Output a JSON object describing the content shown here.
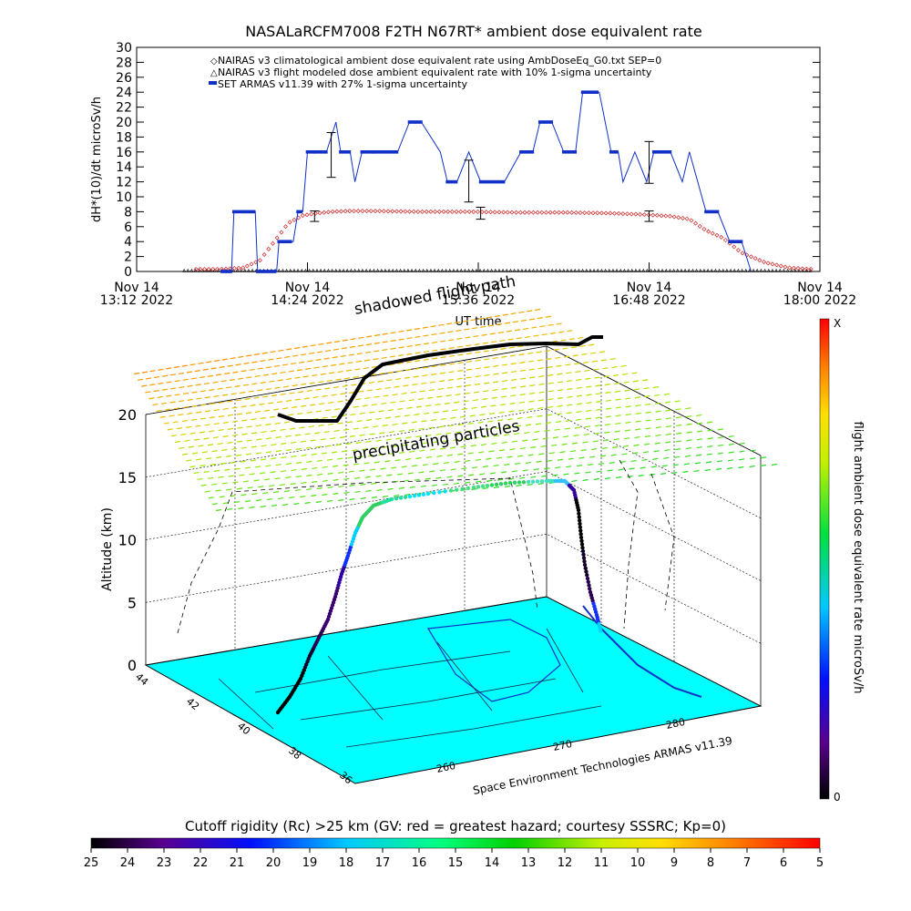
{
  "chart_data": [
    {
      "type": "line",
      "title": "NASALaRCFM7008  F2TH N67RT* ambient dose equivalent rate",
      "xlabel": "UT time",
      "ylabel": "dH*(10)/dt microSv/h",
      "ylim": [
        0,
        30
      ],
      "yticks": [
        "0",
        "2",
        "4",
        "6",
        "8",
        "10",
        "12",
        "14",
        "16",
        "18",
        "20",
        "22",
        "24",
        "26",
        "28",
        "30"
      ],
      "xlim_minutes": [
        0,
        288
      ],
      "xticks": [
        {
          "minutes": 0,
          "day": "Nov 14",
          "time": "13:12 2022"
        },
        {
          "minutes": 72,
          "day": "Nov 14",
          "time": "14:24 2022"
        },
        {
          "minutes": 144,
          "day": "Nov 14",
          "time": "15:36 2022"
        },
        {
          "minutes": 216,
          "day": "Nov 14",
          "time": "16:48 2022"
        },
        {
          "minutes": 288,
          "day": "Nov 14",
          "time": "18:00 2022"
        }
      ],
      "legend_position": "top-left",
      "series": [
        {
          "name": "NAIRAS v3 climatological ambient dose equivalent rate using AmbDoseEq_G0.txt SEP=0",
          "marker": "open-diamond",
          "color": "#d22020",
          "x": [
            25,
            35,
            45,
            52,
            58,
            64,
            70,
            76,
            82,
            90,
            100,
            120,
            140,
            160,
            180,
            200,
            215,
            225,
            233,
            240,
            247,
            255,
            265,
            275,
            285
          ],
          "y": [
            0.3,
            0.3,
            0.5,
            1.5,
            4.0,
            6.5,
            7.5,
            7.8,
            8.0,
            8.1,
            8.1,
            8.0,
            8.0,
            7.9,
            7.9,
            7.8,
            7.6,
            7.4,
            7.0,
            5.5,
            4.5,
            2.5,
            1.2,
            0.5,
            0.3
          ]
        },
        {
          "name": "NAIRAS v3 flight modeled dose ambient equivalent rate with 10% 1-sigma uncertainty",
          "marker": "triangle",
          "color": "#000000",
          "x": [
            75,
            145,
            216
          ],
          "y": [
            7.4,
            7.8,
            7.4
          ],
          "yerr": [
            0.7,
            0.8,
            0.7
          ]
        },
        {
          "name": "SET ARMAS v11.39 with 27% 1-sigma uncertainty",
          "marker": "filled-square",
          "color": "#1030c8",
          "x": [
            36,
            40,
            41,
            50,
            51,
            59,
            60,
            66,
            68,
            70,
            72,
            75,
            80,
            84,
            86,
            90,
            92,
            95,
            100,
            110,
            115,
            120,
            128,
            131,
            135,
            140,
            145,
            155,
            162,
            167,
            170,
            175,
            180,
            185,
            188,
            195,
            200,
            203,
            205,
            210,
            215,
            218,
            220,
            225,
            230,
            233,
            240,
            245,
            250,
            255,
            259
          ],
          "y": [
            0,
            0,
            8,
            8,
            0,
            0,
            4,
            4,
            8,
            8,
            16,
            16,
            16,
            20,
            16,
            16,
            12,
            16,
            16,
            16,
            20,
            20,
            16,
            12,
            12,
            16,
            12,
            12,
            16,
            16,
            20,
            20,
            16,
            16,
            24,
            24,
            16,
            16,
            12,
            16,
            12,
            16,
            16,
            16,
            12,
            16,
            8,
            8,
            4,
            4,
            0
          ],
          "yerr_values": [
            {
              "x": 82,
              "y": 15.6,
              "err": 3.0
            },
            {
              "x": 140,
              "y": 12.1,
              "err": 2.8
            },
            {
              "x": 216,
              "y": 14.6,
              "err": 2.8
            }
          ]
        }
      ],
      "grid": false
    },
    {
      "type": "scatter",
      "title": "",
      "zlabel": "Altitude (km)",
      "zlim": [
        0,
        20
      ],
      "zticks": [
        "0",
        "5",
        "10",
        "15",
        "20"
      ],
      "lat_ticks": [
        "44",
        "42",
        "40",
        "38",
        "36"
      ],
      "lon_ticks": [
        "260",
        "270",
        "280"
      ],
      "annotations": [
        "shadowed flight path",
        "precipitating particles",
        "Space Environment Technologies ARMAS v11.39"
      ],
      "colorbar": {
        "label": "flight ambient dose equivalent rate microSv/h",
        "top_label": "X",
        "bottom_label": "0",
        "colormap": "rainbow"
      },
      "flight_path": [
        {
          "lat": 37.3,
          "lon": 256.2,
          "alt_km": 0.0
        },
        {
          "lat": 38.0,
          "lon": 257.5,
          "alt_km": 1.5
        },
        {
          "lat": 39.0,
          "lon": 259.0,
          "alt_km": 4.0
        },
        {
          "lat": 40.0,
          "lon": 260.5,
          "alt_km": 7.5
        },
        {
          "lat": 40.8,
          "lon": 262.0,
          "alt_km": 10.0
        },
        {
          "lat": 41.6,
          "lon": 264.0,
          "alt_km": 12.5
        },
        {
          "lat": 42.2,
          "lon": 268.0,
          "alt_km": 13.3
        },
        {
          "lat": 42.4,
          "lon": 274.0,
          "alt_km": 13.6
        },
        {
          "lat": 42.3,
          "lon": 280.0,
          "alt_km": 13.8
        },
        {
          "lat": 41.8,
          "lon": 283.5,
          "alt_km": 13.9
        },
        {
          "lat": 41.2,
          "lon": 285.5,
          "alt_km": 11.0
        },
        {
          "lat": 40.8,
          "lon": 286.5,
          "alt_km": 7.0
        },
        {
          "lat": 40.6,
          "lon": 287.0,
          "alt_km": 3.0
        },
        {
          "lat": 40.6,
          "lon": 287.2,
          "alt_km": 0.0
        }
      ]
    },
    {
      "type": "heatmap",
      "title": "Cutoff rigidity (Rc) >25 km (GV: red = greatest hazard; courtesy SSSRC; Kp=0)",
      "colorbar_ticks": [
        "25",
        "24",
        "23",
        "22",
        "21",
        "20",
        "19",
        "18",
        "17",
        "16",
        "15",
        "14",
        "13",
        "12",
        "11",
        "10",
        "9",
        "8",
        "7",
        "6",
        "5"
      ],
      "colormap": "rainbow"
    }
  ]
}
